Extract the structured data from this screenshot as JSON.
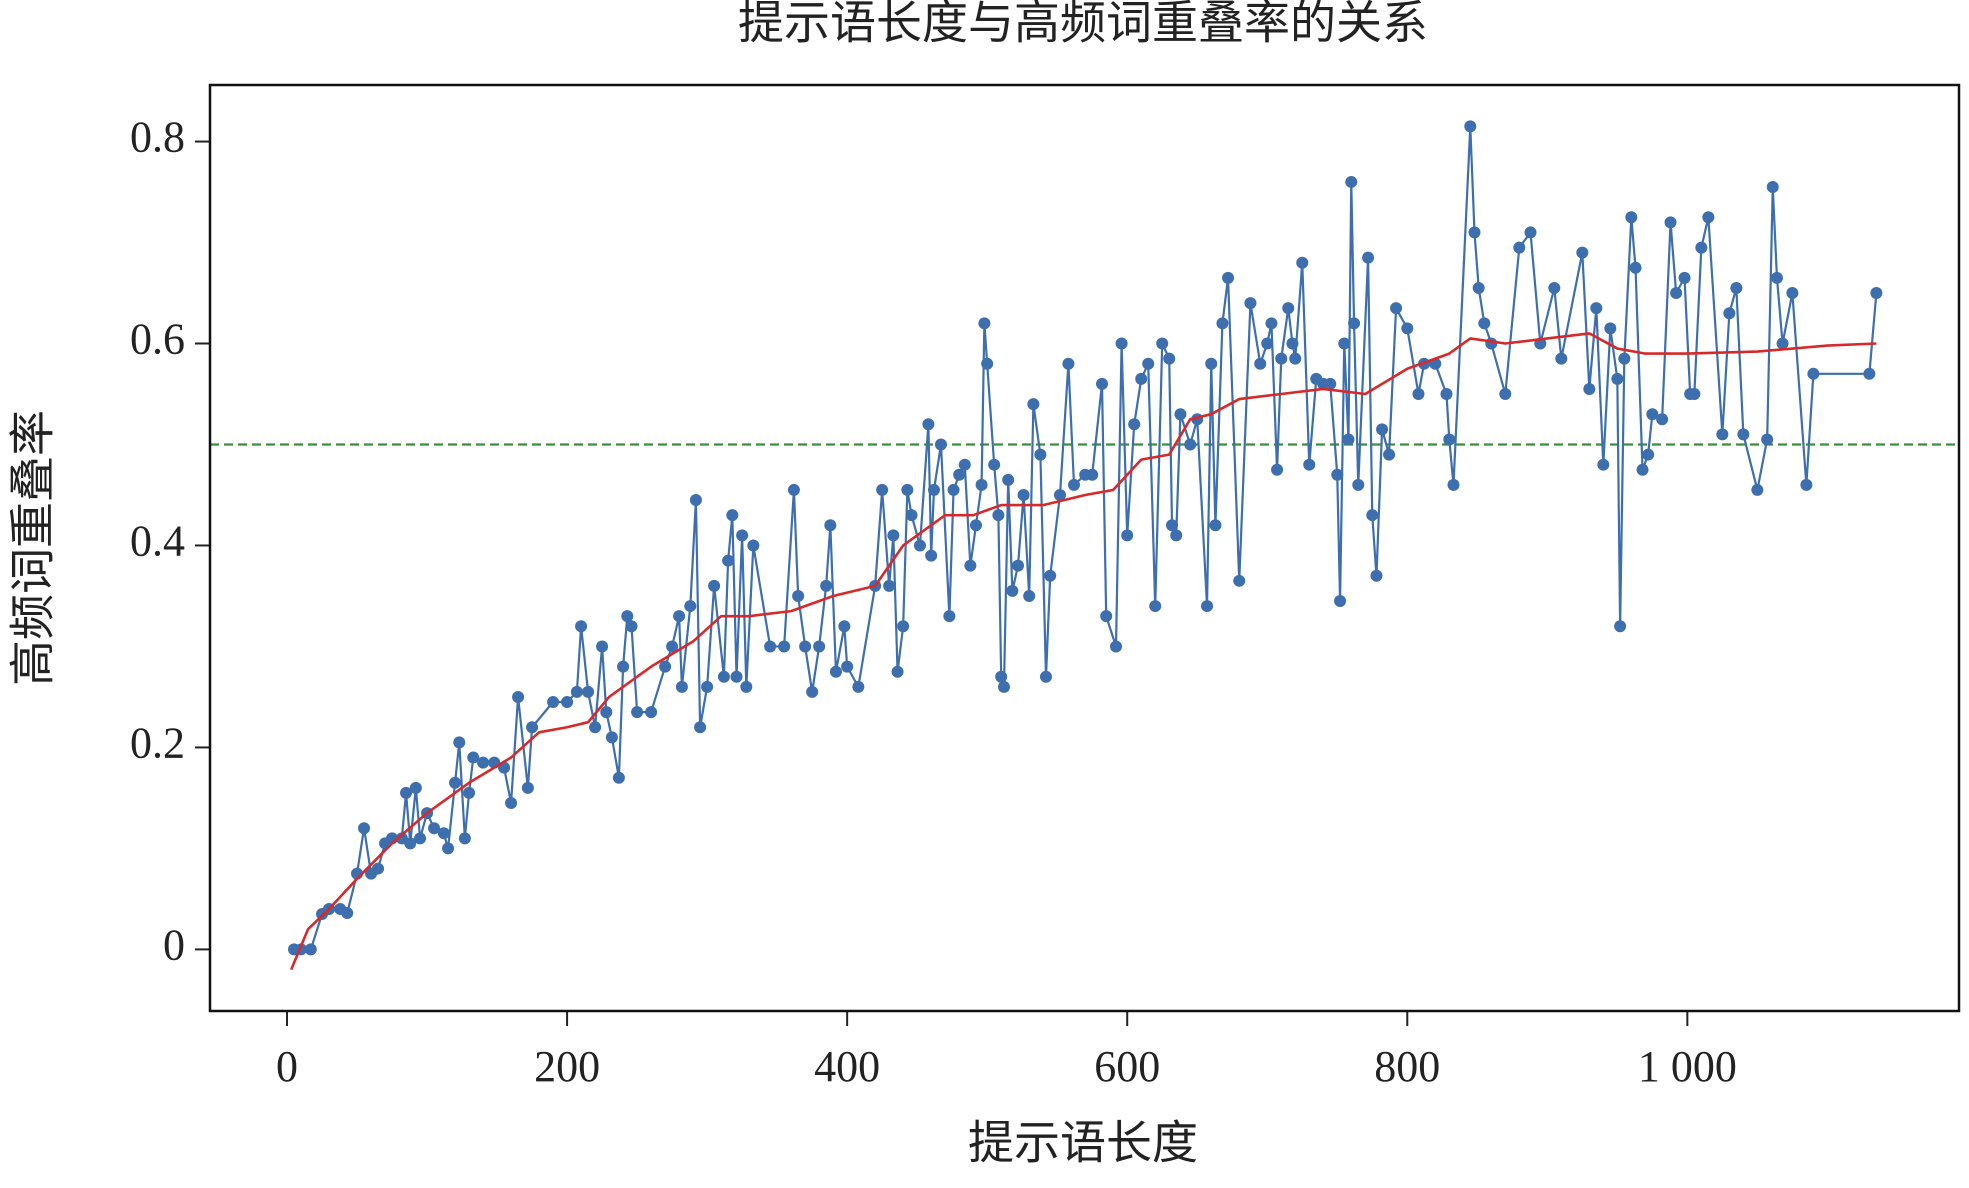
{
  "chart_data": {
    "type": "line",
    "title": "提示语长度与高频词重叠率的关系",
    "xlabel": "提示语长度",
    "ylabel": "高频词重叠率",
    "xlim": [
      -55,
      1194
    ],
    "ylim": [
      -0.061,
      0.856
    ],
    "xticks": [
      0,
      200,
      400,
      600,
      800,
      {
        "value": 1000,
        "label": "1 000"
      }
    ],
    "yticks": [
      0,
      0.2,
      0.4,
      0.6,
      0.8
    ],
    "reference_lines": [
      {
        "y": 0.5,
        "color": "#3a8f3a",
        "style": "dashed"
      }
    ],
    "series": [
      {
        "color": "#3d6fae",
        "marker": true,
        "x": [
          5,
          10,
          17,
          25,
          30,
          38,
          43,
          50,
          55,
          60,
          65,
          70,
          75,
          82,
          85,
          88,
          92,
          95,
          100,
          105,
          112,
          115,
          120,
          123,
          127,
          130,
          133,
          140,
          148,
          155,
          160,
          165,
          172,
          175,
          190,
          200,
          207,
          210,
          215,
          220,
          225,
          228,
          232,
          237,
          240,
          243,
          246,
          250,
          260,
          270,
          275,
          280,
          282,
          288,
          292,
          295,
          300,
          305,
          312,
          315,
          318,
          321,
          325,
          328,
          333,
          345,
          355,
          362,
          365,
          370,
          375,
          380,
          385,
          388,
          392,
          398,
          400,
          408,
          420,
          425,
          430,
          433,
          436,
          440,
          443,
          446,
          452,
          458,
          460,
          462,
          467,
          473,
          476,
          480,
          484,
          488,
          492,
          496,
          498,
          500,
          505,
          508,
          510,
          512,
          515,
          518,
          522,
          526,
          530,
          533,
          538,
          542,
          545,
          552,
          558,
          562,
          570,
          575,
          582,
          585,
          592,
          596,
          600,
          605,
          610,
          615,
          620,
          625,
          630,
          632,
          635,
          638,
          645,
          650,
          657,
          660,
          663,
          668,
          672,
          680,
          688,
          695,
          700,
          703,
          707,
          710,
          715,
          718,
          720,
          725,
          730,
          735,
          740,
          745,
          750,
          752,
          755,
          758,
          760,
          762,
          765,
          772,
          775,
          778,
          782,
          787,
          792,
          800,
          808,
          812,
          820,
          828,
          830,
          833,
          845,
          848,
          851,
          855,
          860,
          870,
          880,
          888,
          895,
          905,
          910,
          925,
          930,
          935,
          940,
          945,
          950,
          952,
          955,
          960,
          963,
          968,
          972,
          975,
          982,
          988,
          992,
          998,
          1002,
          1005,
          1010,
          1015,
          1025,
          1030,
          1035,
          1040,
          1050,
          1057,
          1061,
          1064,
          1068,
          1075,
          1085,
          1090,
          1130,
          1135
        ],
        "values": [
          0,
          0,
          0,
          0.035,
          0.04,
          0.04,
          0.036,
          0.075,
          0.12,
          0.075,
          0.08,
          0.105,
          0.11,
          0.11,
          0.155,
          0.105,
          0.16,
          0.11,
          0.135,
          0.12,
          0.115,
          0.1,
          0.165,
          0.205,
          0.11,
          0.155,
          0.19,
          0.185,
          0.185,
          0.18,
          0.145,
          0.25,
          0.16,
          0.22,
          0.245,
          0.245,
          0.255,
          0.32,
          0.255,
          0.22,
          0.3,
          0.235,
          0.21,
          0.17,
          0.28,
          0.33,
          0.32,
          0.235,
          0.235,
          0.28,
          0.3,
          0.33,
          0.26,
          0.34,
          0.445,
          0.22,
          0.26,
          0.36,
          0.27,
          0.385,
          0.43,
          0.27,
          0.41,
          0.26,
          0.4,
          0.3,
          0.3,
          0.455,
          0.35,
          0.3,
          0.255,
          0.3,
          0.36,
          0.42,
          0.275,
          0.32,
          0.28,
          0.26,
          0.36,
          0.455,
          0.36,
          0.41,
          0.275,
          0.32,
          0.455,
          0.43,
          0.4,
          0.52,
          0.39,
          0.455,
          0.5,
          0.33,
          0.455,
          0.47,
          0.48,
          0.38,
          0.42,
          0.46,
          0.62,
          0.58,
          0.48,
          0.43,
          0.27,
          0.26,
          0.465,
          0.355,
          0.38,
          0.45,
          0.35,
          0.54,
          0.49,
          0.27,
          0.37,
          0.45,
          0.58,
          0.46,
          0.47,
          0.47,
          0.56,
          0.33,
          0.3,
          0.6,
          0.41,
          0.52,
          0.565,
          0.58,
          0.34,
          0.6,
          0.585,
          0.42,
          0.41,
          0.53,
          0.5,
          0.525,
          0.34,
          0.58,
          0.42,
          0.62,
          0.665,
          0.365,
          0.64,
          0.58,
          0.6,
          0.62,
          0.475,
          0.585,
          0.635,
          0.6,
          0.585,
          0.68,
          0.48,
          0.565,
          0.56,
          0.56,
          0.47,
          0.345,
          0.6,
          0.505,
          0.76,
          0.62,
          0.46,
          0.685,
          0.43,
          0.37,
          0.515,
          0.49,
          0.635,
          0.615,
          0.55,
          0.58,
          0.58,
          0.55,
          0.505,
          0.46,
          0.815,
          0.71,
          0.655,
          0.62,
          0.6,
          0.55,
          0.695,
          0.71,
          0.6,
          0.655,
          0.585,
          0.69,
          0.555,
          0.635,
          0.48,
          0.615,
          0.565,
          0.32,
          0.585,
          0.725,
          0.675,
          0.475,
          0.49,
          0.53,
          0.525,
          0.72,
          0.65,
          0.665,
          0.55,
          0.55,
          0.695,
          0.725,
          0.51,
          0.63,
          0.655,
          0.51,
          0.455,
          0.505,
          0.755,
          0.665,
          0.6,
          0.65,
          0.46,
          0.57,
          0.57,
          0.65
        ]
      },
      {
        "color": "#d62a2a",
        "marker": false,
        "x": [
          3,
          15,
          30,
          50,
          75,
          100,
          130,
          160,
          180,
          200,
          215,
          230,
          260,
          290,
          310,
          330,
          360,
          390,
          420,
          440,
          470,
          490,
          510,
          540,
          570,
          590,
          610,
          630,
          645,
          660,
          680,
          710,
          740,
          770,
          800,
          830,
          845,
          870,
          900,
          930,
          950,
          970,
          1000,
          1050,
          1100,
          1135
        ],
        "values": [
          -0.02,
          0.02,
          0.04,
          0.07,
          0.105,
          0.135,
          0.165,
          0.19,
          0.215,
          0.22,
          0.225,
          0.25,
          0.28,
          0.305,
          0.33,
          0.33,
          0.335,
          0.35,
          0.36,
          0.4,
          0.43,
          0.43,
          0.44,
          0.44,
          0.45,
          0.455,
          0.485,
          0.49,
          0.525,
          0.53,
          0.545,
          0.55,
          0.555,
          0.55,
          0.575,
          0.59,
          0.605,
          0.6,
          0.605,
          0.61,
          0.595,
          0.59,
          0.59,
          0.592,
          0.598,
          0.6
        ]
      }
    ]
  }
}
